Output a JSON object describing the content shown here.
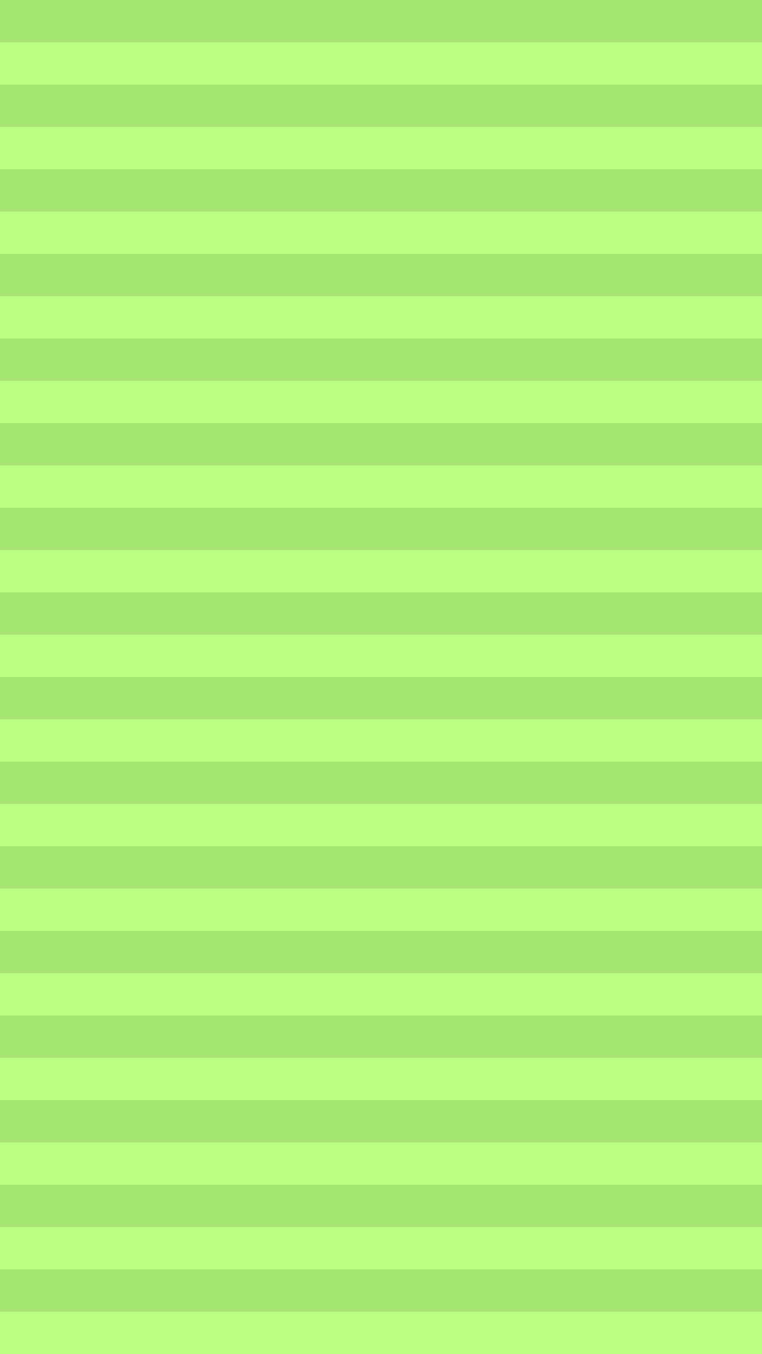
{
  "background": {
    "pattern": "horizontal-stripes",
    "stripe_count": 32,
    "colors": {
      "stripe_dark": "#a8e674",
      "stripe_light": "#b8ff84"
    }
  }
}
